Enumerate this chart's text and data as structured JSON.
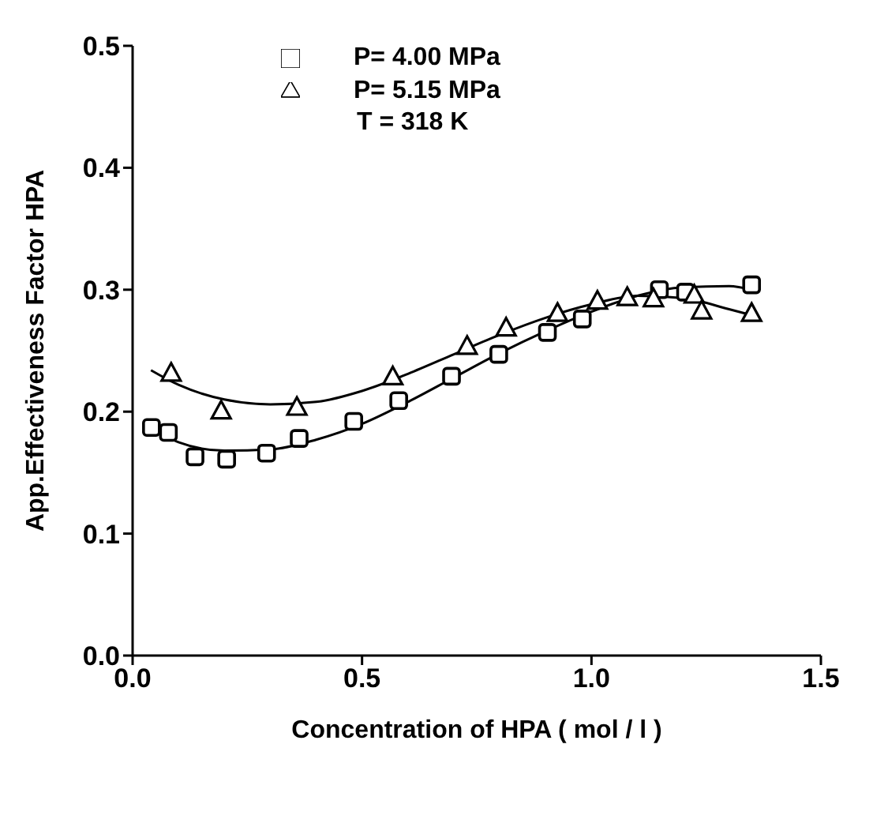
{
  "chart_data": {
    "type": "scatter",
    "xlabel": "Concentration of HPA ( mol / l )",
    "ylabel": "App.Effectiveness Factor HPA",
    "xlim": [
      0,
      1.5
    ],
    "xticks": [
      {
        "value": 0,
        "label": "0.0"
      },
      0.5,
      {
        "value": 1,
        "label": "1.0"
      },
      1.5
    ],
    "ylim": [
      0,
      0.5
    ],
    "yticks": [
      {
        "value": 0,
        "label": "0.0"
      },
      0.1,
      0.2,
      0.3,
      0.4,
      0.5
    ],
    "grid": false,
    "legend": "top left",
    "annotations": [
      "T = 318 K"
    ],
    "series": [
      {
        "name": "P= 4.00 MPa",
        "color": "#000000",
        "marker": "square",
        "x": [
          0.041,
          0.078,
          0.136,
          0.205,
          0.292,
          0.363,
          0.482,
          0.58,
          0.695,
          0.798,
          0.904,
          0.98,
          1.148,
          1.205,
          1.349
        ],
        "values": [
          0.187,
          0.183,
          0.163,
          0.161,
          0.166,
          0.178,
          0.192,
          0.209,
          0.229,
          0.247,
          0.265,
          0.276,
          0.3,
          0.298,
          0.304
        ]
      },
      {
        "name": "P= 5.15 MPa",
        "color": "#000000",
        "marker": "triangle",
        "x": [
          0.084,
          0.193,
          0.358,
          0.567,
          0.729,
          0.814,
          0.926,
          1.013,
          1.078,
          1.135,
          1.224,
          1.24,
          1.349
        ],
        "values": [
          0.232,
          0.201,
          0.204,
          0.229,
          0.254,
          0.269,
          0.281,
          0.291,
          0.294,
          0.293,
          0.296,
          0.283,
          0.281
        ]
      },
      {
        "type": "line",
        "color": "#000000",
        "marker": "none",
        "line_style": "solid",
        "x": [
          0.04,
          0.1,
          0.2,
          0.3,
          0.4,
          0.5,
          0.6,
          0.7,
          0.8,
          0.9,
          1.0,
          1.1,
          1.2,
          1.3,
          1.35
        ],
        "values": [
          0.187,
          0.175,
          0.168,
          0.169,
          0.177,
          0.19,
          0.208,
          0.228,
          0.248,
          0.266,
          0.282,
          0.295,
          0.302,
          0.303,
          0.3
        ]
      },
      {
        "type": "line",
        "color": "#000000",
        "marker": "none",
        "line_style": "solid",
        "x": [
          0.04,
          0.1,
          0.2,
          0.3,
          0.4,
          0.5,
          0.6,
          0.7,
          0.8,
          0.9,
          1.0,
          1.1,
          1.2,
          1.3,
          1.35
        ],
        "values": [
          0.234,
          0.222,
          0.21,
          0.206,
          0.208,
          0.217,
          0.231,
          0.247,
          0.263,
          0.277,
          0.288,
          0.295,
          0.293,
          0.284,
          0.279
        ]
      }
    ]
  }
}
